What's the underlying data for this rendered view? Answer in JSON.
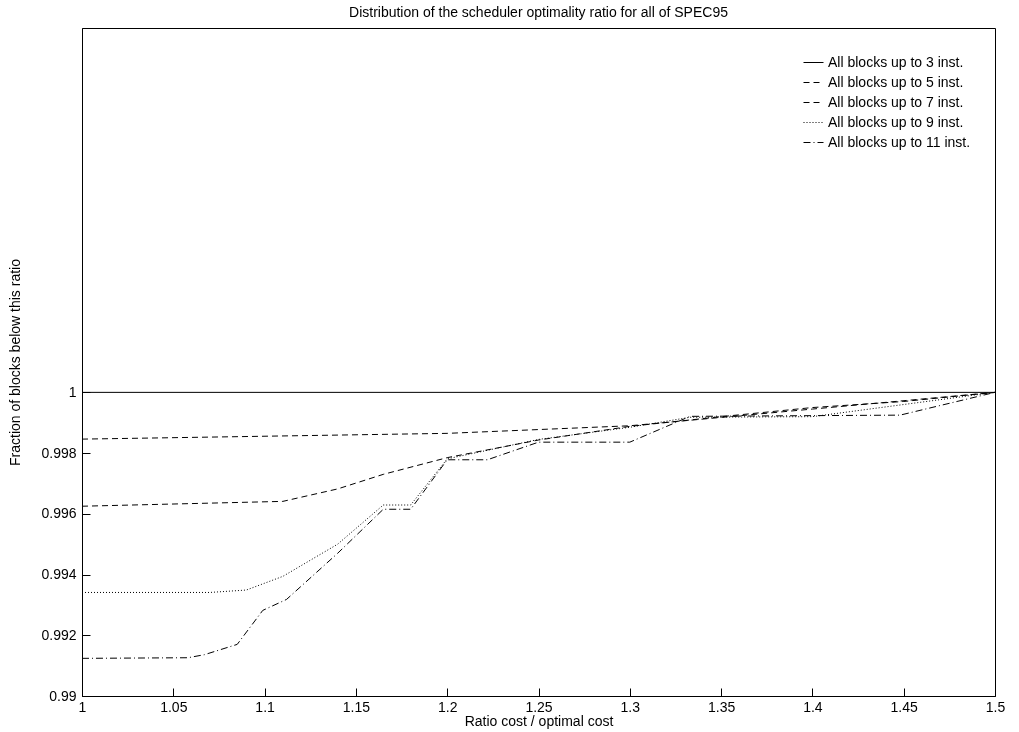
{
  "chart_data": {
    "type": "line",
    "title": "Distribution of the scheduler optimality ratio for all of SPEC95",
    "xlabel": "Ratio cost / optimal cost",
    "ylabel": "Fraction of blocks below this ratio",
    "xlim": [
      1,
      1.5
    ],
    "xticks": [
      1,
      1.05,
      1.1,
      1.15,
      1.2,
      1.25,
      1.3,
      1.35,
      1.4,
      1.45,
      1.5
    ],
    "ylim": [
      0.99,
      1.012
    ],
    "yticks": [
      0.99,
      0.992,
      0.994,
      0.996,
      0.998,
      1
    ],
    "grid": false,
    "legend": "top right",
    "series": [
      {
        "name": "All blocks up to 3 inst.",
        "color": "#000000",
        "line_style": "solid",
        "x": [
          1,
          1.5
        ],
        "values": [
          1,
          1
        ]
      },
      {
        "name": "All blocks up to 5 inst.",
        "color": "#000000",
        "line_style": "dashed",
        "x": [
          1,
          1.2,
          1.3,
          1.4,
          1.5
        ],
        "values": [
          0.99846,
          0.99865,
          0.9989,
          0.99945,
          1
        ]
      },
      {
        "name": "All blocks up to 7 inst.",
        "color": "#000000",
        "line_style": "dashed",
        "x": [
          1,
          1.11,
          1.14,
          1.165,
          1.2,
          1.25,
          1.3,
          1.35,
          1.4,
          1.45,
          1.5
        ],
        "values": [
          0.99625,
          0.99641,
          0.99682,
          0.9973,
          0.99785,
          0.99843,
          0.99888,
          0.9992,
          0.9995,
          0.9997,
          1
        ]
      },
      {
        "name": "All blocks up to 9 inst.",
        "color": "#000000",
        "line_style": "dotted",
        "x": [
          1,
          1.07,
          1.09,
          1.11,
          1.14,
          1.165,
          1.18,
          1.2,
          1.25,
          1.3,
          1.333,
          1.4,
          1.45,
          1.5
        ],
        "values": [
          0.99341,
          0.99341,
          0.99349,
          0.99394,
          0.995,
          0.99629,
          0.99629,
          0.99781,
          0.99845,
          0.99885,
          0.99918,
          0.9992,
          0.9996,
          1
        ]
      },
      {
        "name": "All blocks up to 11 inst.",
        "color": "#000000",
        "line_style": "dashdot",
        "x": [
          1,
          1.058,
          1.067,
          1.085,
          1.099,
          1.112,
          1.14,
          1.165,
          1.18,
          1.2,
          1.222,
          1.25,
          1.3,
          1.333,
          1.448,
          1.5
        ],
        "values": [
          0.99124,
          0.99126,
          0.99136,
          0.9917,
          0.99282,
          0.99318,
          0.9947,
          0.99615,
          0.99615,
          0.99778,
          0.99778,
          0.99836,
          0.99836,
          0.99921,
          0.99925,
          1
        ]
      }
    ]
  }
}
